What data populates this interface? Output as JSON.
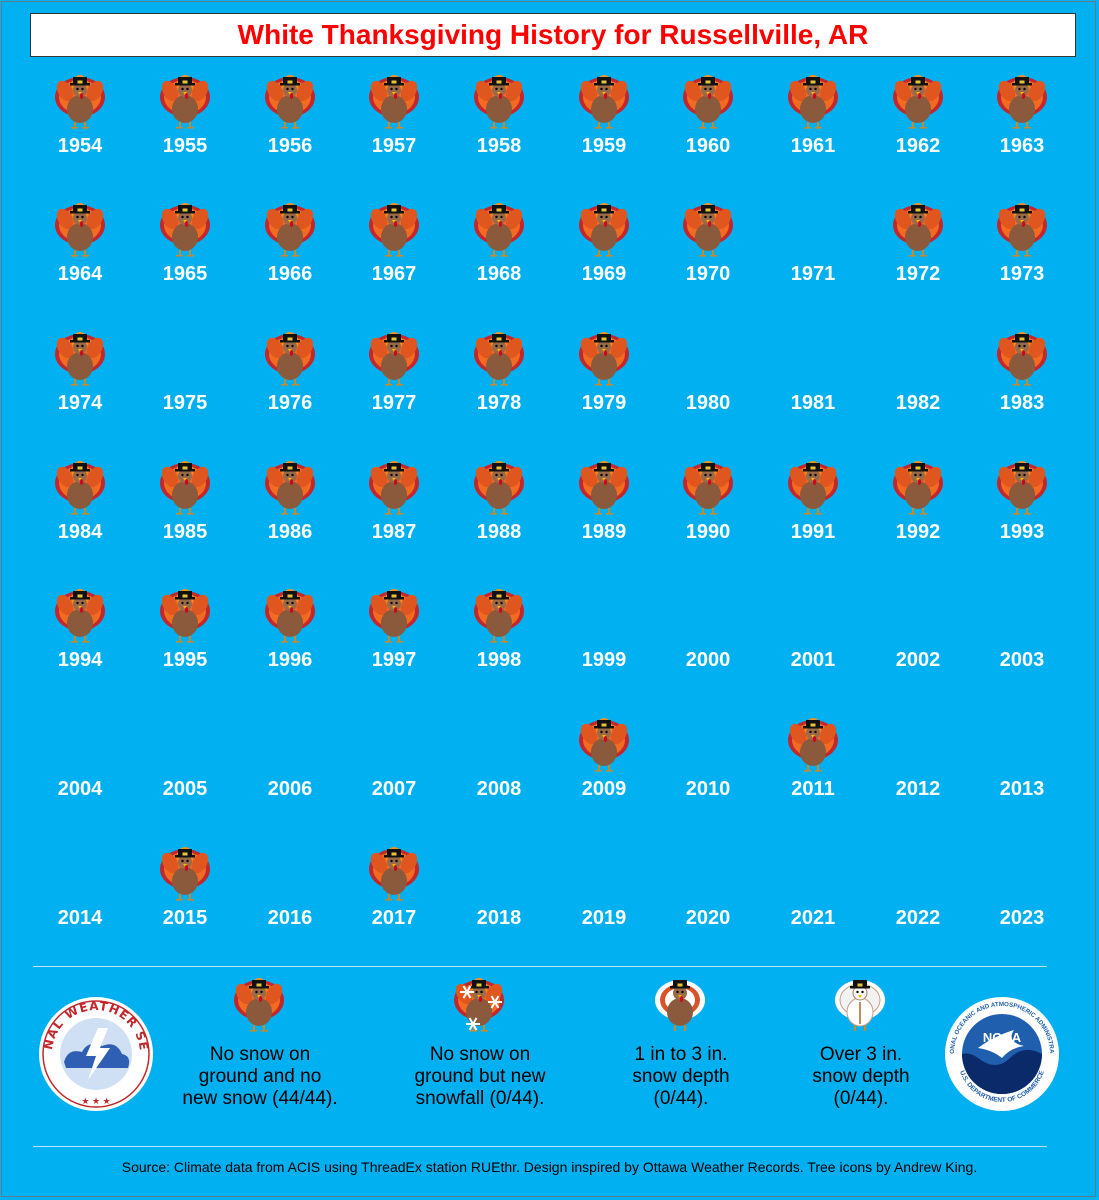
{
  "title": "White Thanksgiving History for Russellville, AR",
  "colors": {
    "background": "#00b0f0",
    "title": "#ff0000",
    "year_text": "#ffffff",
    "turkey_body": "#8b5a3c",
    "feather_orange": "#f26b21",
    "feather_red": "#c1272d"
  },
  "icons": {
    "no_snow": "turkey-icon",
    "new_snow": "turkey-snowflake-icon",
    "depth_1_3": "turkey-white-feathers-icon",
    "depth_over_3": "turkey-snow-covered-icon"
  },
  "years": [
    {
      "year": "1954",
      "turkey": true
    },
    {
      "year": "1955",
      "turkey": true
    },
    {
      "year": "1956",
      "turkey": true
    },
    {
      "year": "1957",
      "turkey": true
    },
    {
      "year": "1958",
      "turkey": true
    },
    {
      "year": "1959",
      "turkey": true
    },
    {
      "year": "1960",
      "turkey": true
    },
    {
      "year": "1961",
      "turkey": true
    },
    {
      "year": "1962",
      "turkey": true
    },
    {
      "year": "1963",
      "turkey": true
    },
    {
      "year": "1964",
      "turkey": true
    },
    {
      "year": "1965",
      "turkey": true
    },
    {
      "year": "1966",
      "turkey": true
    },
    {
      "year": "1967",
      "turkey": true
    },
    {
      "year": "1968",
      "turkey": true
    },
    {
      "year": "1969",
      "turkey": true
    },
    {
      "year": "1970",
      "turkey": true
    },
    {
      "year": "1971",
      "turkey": false
    },
    {
      "year": "1972",
      "turkey": true
    },
    {
      "year": "1973",
      "turkey": true
    },
    {
      "year": "1974",
      "turkey": true
    },
    {
      "year": "1975",
      "turkey": false
    },
    {
      "year": "1976",
      "turkey": true
    },
    {
      "year": "1977",
      "turkey": true
    },
    {
      "year": "1978",
      "turkey": true
    },
    {
      "year": "1979",
      "turkey": true
    },
    {
      "year": "1980",
      "turkey": false
    },
    {
      "year": "1981",
      "turkey": false
    },
    {
      "year": "1982",
      "turkey": false
    },
    {
      "year": "1983",
      "turkey": true
    },
    {
      "year": "1984",
      "turkey": true
    },
    {
      "year": "1985",
      "turkey": true
    },
    {
      "year": "1986",
      "turkey": true
    },
    {
      "year": "1987",
      "turkey": true
    },
    {
      "year": "1988",
      "turkey": true
    },
    {
      "year": "1989",
      "turkey": true
    },
    {
      "year": "1990",
      "turkey": true
    },
    {
      "year": "1991",
      "turkey": true
    },
    {
      "year": "1992",
      "turkey": true
    },
    {
      "year": "1993",
      "turkey": true
    },
    {
      "year": "1994",
      "turkey": true
    },
    {
      "year": "1995",
      "turkey": true
    },
    {
      "year": "1996",
      "turkey": true
    },
    {
      "year": "1997",
      "turkey": true
    },
    {
      "year": "1998",
      "turkey": true
    },
    {
      "year": "1999",
      "turkey": false
    },
    {
      "year": "2000",
      "turkey": false
    },
    {
      "year": "2001",
      "turkey": false
    },
    {
      "year": "2002",
      "turkey": false
    },
    {
      "year": "2003",
      "turkey": false
    },
    {
      "year": "2004",
      "turkey": false
    },
    {
      "year": "2005",
      "turkey": false
    },
    {
      "year": "2006",
      "turkey": false
    },
    {
      "year": "2007",
      "turkey": false
    },
    {
      "year": "2008",
      "turkey": false
    },
    {
      "year": "2009",
      "turkey": true
    },
    {
      "year": "2010",
      "turkey": false
    },
    {
      "year": "2011",
      "turkey": true
    },
    {
      "year": "2012",
      "turkey": false
    },
    {
      "year": "2013",
      "turkey": false
    },
    {
      "year": "2014",
      "turkey": false
    },
    {
      "year": "2015",
      "turkey": true
    },
    {
      "year": "2016",
      "turkey": false
    },
    {
      "year": "2017",
      "turkey": true
    },
    {
      "year": "2018",
      "turkey": false
    },
    {
      "year": "2019",
      "turkey": false
    },
    {
      "year": "2020",
      "turkey": false
    },
    {
      "year": "2021",
      "turkey": false
    },
    {
      "year": "2022",
      "turkey": false
    },
    {
      "year": "2023",
      "turkey": false
    }
  ],
  "legend": {
    "no_snow": {
      "line1": "No snow on",
      "line2": "ground and no",
      "line3": "new snow (44/44)."
    },
    "new_snow": {
      "line1": "No snow on",
      "line2": "ground but new",
      "line3": "snowfall (0/44)."
    },
    "depth_1_3": {
      "line1": "1 in to 3 in.",
      "line2": "snow depth",
      "line3": "(0/44)."
    },
    "depth_over_3": {
      "line1": "Over 3 in.",
      "line2": "snow depth",
      "line3": "(0/44)."
    }
  },
  "logos": {
    "nws_text": "NATIONAL WEATHER SERVICE",
    "noaa_center": "NOAA",
    "noaa_ring": "NATIONAL OCEANIC AND ATMOSPHERIC ADMINISTRATION",
    "noaa_bottom": "U.S. DEPARTMENT OF COMMERCE"
  },
  "source": "Source: Climate data from ACIS using ThreadEx station RUEthr. Design inspired by Ottawa Weather Records. Tree icons by Andrew King."
}
